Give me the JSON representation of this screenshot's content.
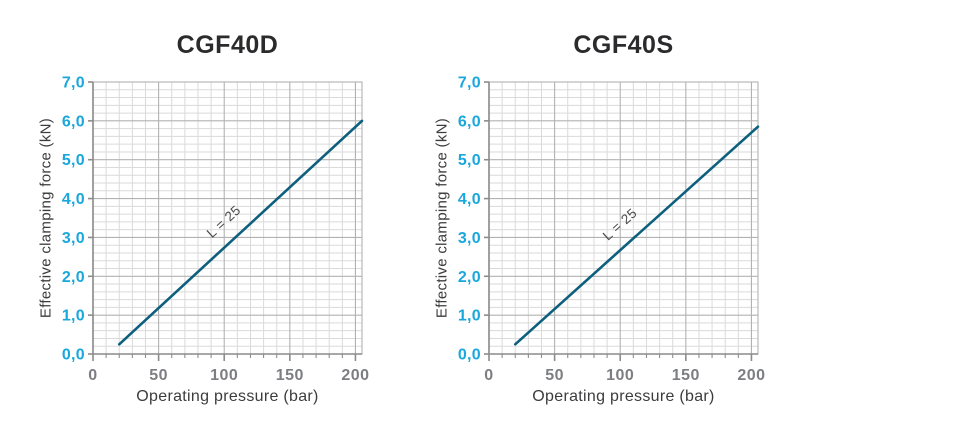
{
  "page": {
    "background": "#ffffff"
  },
  "colors": {
    "y_tick_label": "#1aa7dc",
    "x_tick_label": "#7d7e82",
    "title_text": "#2b2b2d",
    "axis_title_text": "#3c3c3e",
    "grid_minor": "#dadada",
    "grid_major": "#b2b2b2",
    "axis_line": "#8c8c8c",
    "series_line": "#0d5f7d",
    "series_label": "#4a4b4d"
  },
  "chart_data": [
    {
      "type": "line",
      "title": "CGF40D",
      "xlabel": "Operating pressure (bar)",
      "ylabel": "Effective clamping force (kN)",
      "xlim": [
        0,
        205
      ],
      "ylim": [
        0,
        7
      ],
      "x_major_ticks": [
        0,
        50,
        100,
        150,
        200
      ],
      "x_tick_labels": [
        "0",
        "50",
        "100",
        "150",
        "200"
      ],
      "x_minor_step": 10,
      "y_major_ticks": [
        0,
        1,
        2,
        3,
        4,
        5,
        6,
        7
      ],
      "y_tick_labels": [
        "0,0",
        "1,0",
        "2,0",
        "3,0",
        "4,0",
        "5,0",
        "6,0",
        "7,0"
      ],
      "y_minor_step": 0.2,
      "grid": "on",
      "legend": "none",
      "series": [
        {
          "name": "L = 25",
          "x": [
            20,
            205
          ],
          "y": [
            0.25,
            6.0
          ]
        }
      ]
    },
    {
      "type": "line",
      "title": "CGF40S",
      "xlabel": "Operating pressure (bar)",
      "ylabel": "Effective clamping force (kN)",
      "xlim": [
        0,
        205
      ],
      "ylim": [
        0,
        7
      ],
      "x_major_ticks": [
        0,
        50,
        100,
        150,
        200
      ],
      "x_tick_labels": [
        "0",
        "50",
        "100",
        "150",
        "200"
      ],
      "x_minor_step": 10,
      "y_major_ticks": [
        0,
        1,
        2,
        3,
        4,
        5,
        6,
        7
      ],
      "y_tick_labels": [
        "0,0",
        "1,0",
        "2,0",
        "3,0",
        "4,0",
        "5,0",
        "6,0",
        "7,0"
      ],
      "y_minor_step": 0.2,
      "grid": "on",
      "legend": "none",
      "series": [
        {
          "name": "L = 25",
          "x": [
            20,
            205
          ],
          "y": [
            0.25,
            5.85
          ]
        }
      ]
    }
  ]
}
